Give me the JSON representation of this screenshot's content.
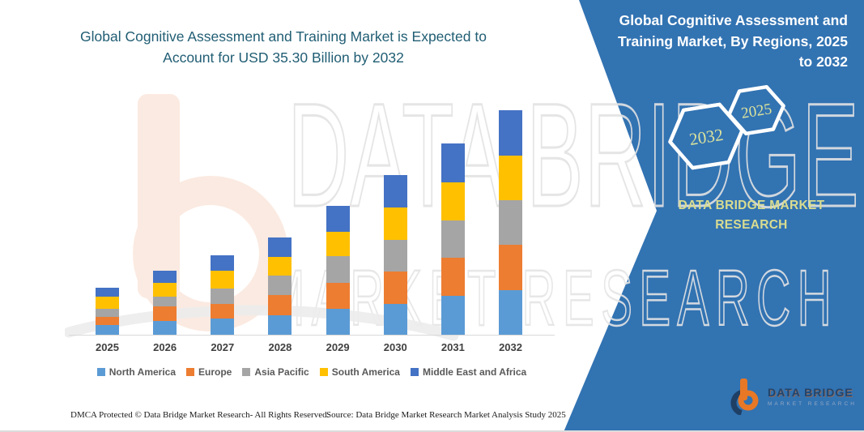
{
  "title": {
    "line1": "Global Cognitive Assessment and Training Market is Expected to",
    "line2": "Account for USD 35.30 Billion by 2032"
  },
  "panel": {
    "heading_lines": [
      "Global Cognitive Assessment and",
      "Training Market, By Regions, 2025",
      "to 2032"
    ],
    "hexagon_back_year": "2032",
    "hexagon_front_year": "2025",
    "brand_lines": [
      "DATA BRIDGE MARKET",
      "RESEARCH"
    ],
    "logo": {
      "name": "DATA BRIDGE",
      "tagline": "MARKET RESEARCH"
    },
    "background_color": "#3273b2",
    "accent_text_color": "#d9dc90"
  },
  "watermark": {
    "line1": "DATA BRIDGE",
    "line2": "MARKET RESEARCH"
  },
  "chart_data": {
    "type": "bar",
    "variant": "stacked-column",
    "title": "Global Cognitive Assessment and Training Market is Expected to Account for USD 35.30 Billion by 2032",
    "unit": "USD Billion",
    "categories": [
      "2025",
      "2026",
      "2027",
      "2028",
      "2029",
      "2030",
      "2031",
      "2032"
    ],
    "series": [
      {
        "name": "North America",
        "color": "#5b9bd5",
        "values": [
          1.5,
          2.2,
          2.5,
          3.1,
          4.1,
          4.8,
          6.1,
          7.0
        ]
      },
      {
        "name": "Europe",
        "color": "#ed7d31",
        "values": [
          1.3,
          2.3,
          2.3,
          3.1,
          4.1,
          5.1,
          6.0,
          7.1
        ]
      },
      {
        "name": "Asia Pacific",
        "color": "#a5a5a5",
        "values": [
          1.3,
          1.5,
          2.5,
          3.1,
          4.2,
          5.0,
          5.9,
          7.0
        ]
      },
      {
        "name": "South America",
        "color": "#ffc000",
        "values": [
          1.9,
          2.2,
          2.8,
          2.9,
          3.8,
          5.1,
          6.0,
          7.1
        ]
      },
      {
        "name": "Middle East and Africa",
        "color": "#4472c4",
        "values": [
          1.4,
          1.9,
          2.4,
          3.1,
          4.1,
          5.1,
          6.1,
          7.1
        ]
      }
    ],
    "totals": [
      7.4,
      10.1,
      12.5,
      15.3,
      20.3,
      25.1,
      30.1,
      35.3
    ],
    "highlight": "USD 35.30 Billion by 2032",
    "ylim": [
      0,
      35.3
    ],
    "gridlines": false,
    "y_axis_visible": false,
    "legend_position": "bottom"
  },
  "footer": {
    "left": "DMCA Protected © Data Bridge Market Research-  All Rights Reserved.",
    "right": "Source: Data Bridge Market Research  Market Analysis Study 2025"
  }
}
